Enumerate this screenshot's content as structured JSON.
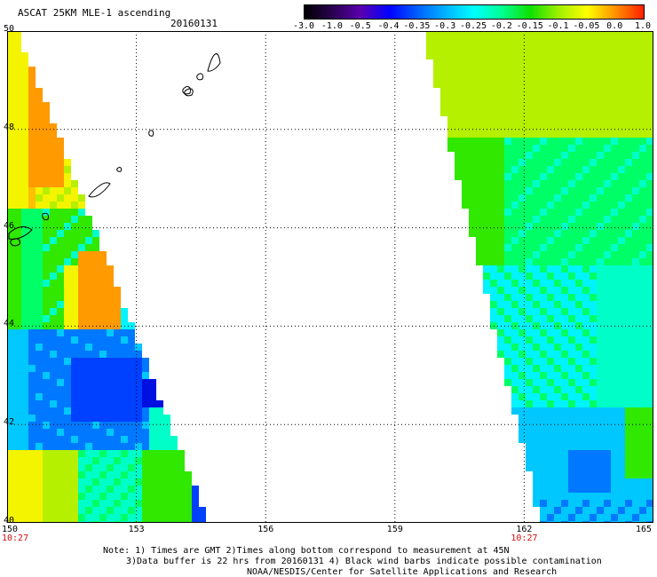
{
  "header": {
    "title": "ASCAT 25KM MLE-1 ascending",
    "date": "20160131"
  },
  "colorbar": {
    "labels": [
      "-3.0",
      "-1.0",
      "-0.5",
      "-0.4",
      "-0.35",
      "-0.3",
      "-0.25",
      "-0.2",
      "-0.15",
      "-0.1",
      "-0.05",
      "0.0",
      "1.0"
    ],
    "colors": [
      "#000000",
      "#2a0050",
      "#5a00b0",
      "#0000ff",
      "#0060ff",
      "#00b4ff",
      "#00ffff",
      "#00ff90",
      "#10e000",
      "#a0f000",
      "#ffff00",
      "#ff9000",
      "#ff2000"
    ]
  },
  "axes": {
    "lat_labels": [
      "50",
      "48",
      "46",
      "44",
      "42",
      "40"
    ],
    "lon_labels": [
      "150",
      "153",
      "156",
      "159",
      "162",
      "165"
    ],
    "time_labels": [
      {
        "text": "10:27",
        "lon": 150
      },
      {
        "text": "10:27",
        "lon": 162
      }
    ]
  },
  "map": {
    "lon_range": [
      150,
      165
    ],
    "lat_range": [
      40,
      50
    ],
    "grid": "dotted",
    "swaths": [
      {
        "name": "western-swath",
        "lon_range": [
          150,
          154.6
        ]
      },
      {
        "name": "eastern-swath",
        "lon_range": [
          159.8,
          165
        ]
      }
    ]
  },
  "notes": {
    "line1": "Note: 1) Times are GMT 2)Times along bottom correspond to measurement at 45N",
    "line2": "3)Data buffer is 22 hrs from 20160131 4) Black wind barbs indicate possible contamination",
    "line3": "NOAA/NESDIS/Center for Satellite Applications and Research"
  }
}
